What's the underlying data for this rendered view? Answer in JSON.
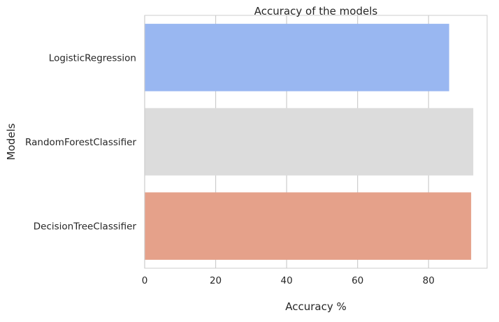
{
  "chart_data": {
    "type": "bar",
    "orientation": "horizontal",
    "title": "Accuracy of the models",
    "xlabel": "Accuracy %",
    "ylabel": "Models",
    "categories": [
      "LogisticRegression",
      "RandomForestClassifier",
      "DecisionTreeClassifier"
    ],
    "values": [
      85.8,
      92.6,
      92.0
    ],
    "bar_colors": [
      "#99b7f1",
      "#dcdcdc",
      "#e5a18a"
    ],
    "xlim": [
      0,
      96.5
    ],
    "xticks": [
      0,
      20,
      40,
      60,
      80
    ],
    "xtick_labels": [
      "0",
      "20",
      "40",
      "60",
      "80"
    ],
    "grid": true,
    "legend": "none"
  }
}
